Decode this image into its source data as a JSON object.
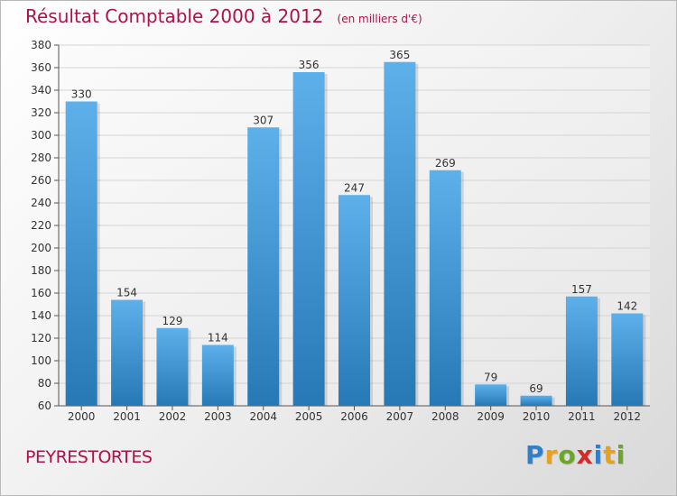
{
  "header": {
    "title": "Résultat Comptable 2000 à 2012",
    "subtitle": "(en milliers d'€)"
  },
  "commune": "PEYRESTORTES",
  "logo": {
    "letters": [
      {
        "char": "P",
        "color": "#2f80c8"
      },
      {
        "char": "r",
        "color": "#e9a11c"
      },
      {
        "char": "o",
        "color": "#6aa823"
      },
      {
        "char": "x",
        "color": "#d12a2a"
      },
      {
        "char": "i",
        "color": "#2f80c8"
      },
      {
        "char": "t",
        "color": "#e9a11c"
      },
      {
        "char": "i",
        "color": "#6aa823"
      }
    ]
  },
  "colors": {
    "bar_top": "#5db0ea",
    "bar_bottom": "#2779b6",
    "title": "#b0114a",
    "grid": "#d4d4d4"
  },
  "chart_data": {
    "type": "bar",
    "title": "Résultat Comptable 2000 à 2012",
    "subtitle": "(en milliers d'€)",
    "categories": [
      "2000",
      "2001",
      "2002",
      "2003",
      "2004",
      "2005",
      "2006",
      "2007",
      "2008",
      "2009",
      "2010",
      "2011",
      "2012"
    ],
    "values": [
      330,
      154,
      129,
      114,
      307,
      356,
      247,
      365,
      269,
      79,
      69,
      157,
      142
    ],
    "data_labels": [
      "330",
      "154",
      "129",
      "114",
      "307",
      "356",
      "247",
      "365",
      "269",
      "79",
      "69",
      "157",
      "142"
    ],
    "ylim": [
      60,
      380
    ],
    "ytick_step": 20,
    "yticks": [
      "60",
      "80",
      "100",
      "120",
      "140",
      "160",
      "180",
      "200",
      "220",
      "240",
      "260",
      "280",
      "300",
      "320",
      "340",
      "360",
      "380"
    ],
    "grid": true,
    "legend": "none"
  }
}
